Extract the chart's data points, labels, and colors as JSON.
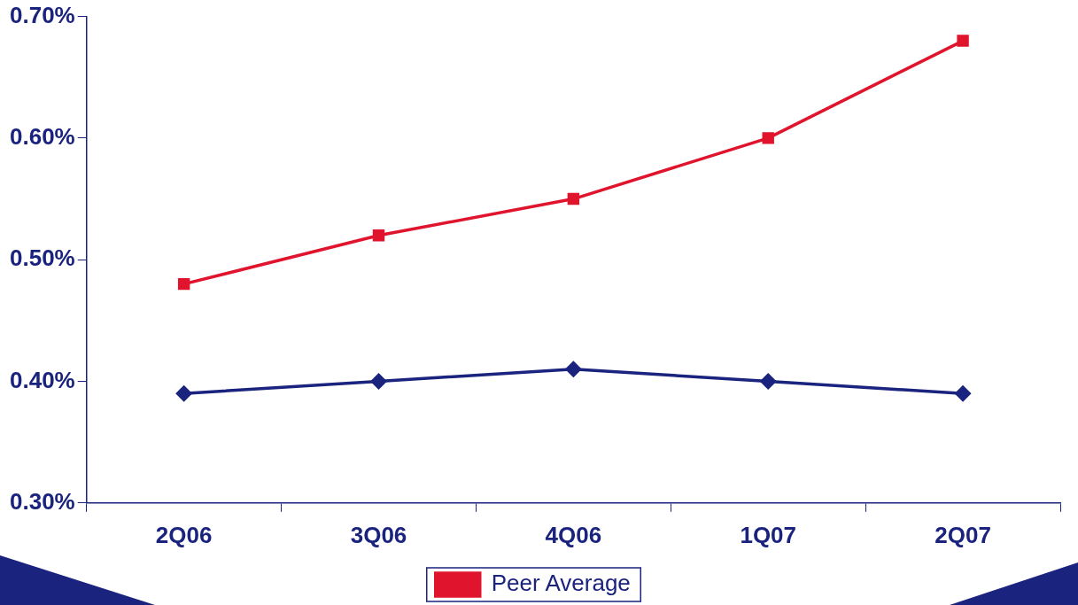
{
  "chart_data": {
    "type": "line",
    "categories": [
      "2Q06",
      "3Q06",
      "4Q06",
      "1Q07",
      "2Q07"
    ],
    "series": [
      {
        "color": "#1a237e",
        "marker": "diamond",
        "values": [
          0.39,
          0.4,
          0.41,
          0.4,
          0.39
        ]
      },
      {
        "name": "Peer Average",
        "color": "#e0142c",
        "marker": "square",
        "values": [
          0.48,
          0.52,
          0.55,
          0.6,
          0.68
        ]
      }
    ],
    "ylim": [
      0.3,
      0.7
    ],
    "yticks": [
      {
        "value": 0.3,
        "label": "0.30%"
      },
      {
        "value": 0.4,
        "label": "0.40%"
      },
      {
        "value": 0.5,
        "label": "0.50%"
      },
      {
        "value": 0.6,
        "label": "0.60%"
      },
      {
        "value": 0.7,
        "label": "0.70%"
      }
    ],
    "grid": false,
    "legend": "bottom",
    "line_style": "solid"
  }
}
